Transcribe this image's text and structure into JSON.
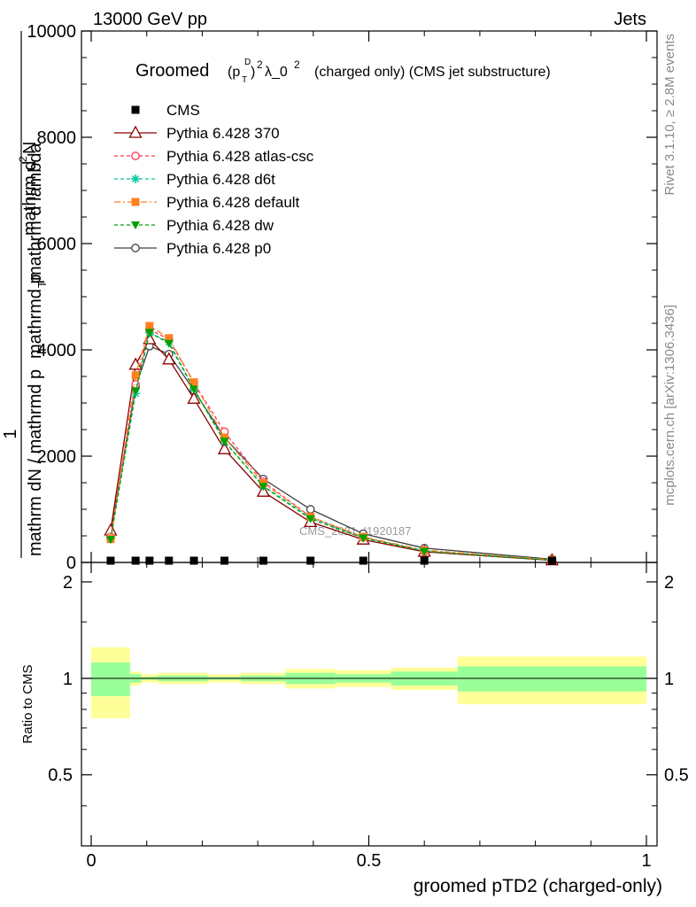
{
  "header": {
    "left": "13000 GeV pp",
    "right": "Jets"
  },
  "title": {
    "main": "Groomed",
    "p": "(p",
    "sub_T": "T",
    "sup_D": "D",
    "close": ")",
    "sup_2": "2",
    "lambda": "λ_0",
    "sup_2b": "2",
    "rest": "(charged only) (CMS jet substructure)"
  },
  "side_labels": {
    "rivet": "Rivet 3.1.10, ≥ 2.8M events",
    "mcplots": "mcplots.cern.ch [arXiv:1306.3436]"
  },
  "watermark": "CMS_2021_I1920187",
  "ylabel_main": {
    "one": "1",
    "denom": "mathrm dN / mathrmd p",
    "denom_sub": "T",
    "num": "mathrm d",
    "num_sup": "2",
    "num_rest": "N",
    "den2": "mathrmd p",
    "den2_sub": "T",
    "den2_rest": " mathrm d lambda"
  },
  "ylabel_ratio": "Ratio to CMS",
  "xlabel": "groomed pTD2 (charged-only)",
  "main_ticks": {
    "y": [
      {
        "v": 0,
        "label": "0"
      },
      {
        "v": 2000,
        "label": "2000"
      },
      {
        "v": 4000,
        "label": "4000"
      },
      {
        "v": 6000,
        "label": "6000"
      },
      {
        "v": 8000,
        "label": "8000"
      },
      {
        "v": 10000,
        "label": "10000"
      }
    ]
  },
  "ratio_ticks": {
    "y": [
      {
        "v": 0.5,
        "label": "0.5"
      },
      {
        "v": 1,
        "label": "1"
      },
      {
        "v": 2,
        "label": "2"
      }
    ]
  },
  "x_ticks": [
    {
      "v": 0,
      "label": "0"
    },
    {
      "v": 0.5,
      "label": "0.5"
    },
    {
      "v": 1,
      "label": "1"
    }
  ],
  "legend": [
    {
      "label": "CMS",
      "color": "#000000",
      "marker": "square-filled",
      "dash": ""
    },
    {
      "label": "Pythia 6.428 370",
      "color": "#8b0000",
      "marker": "triangle-open",
      "dash": ""
    },
    {
      "label": "Pythia 6.428 atlas-csc",
      "color": "#ff3355",
      "marker": "circle-open",
      "dash": "4,3"
    },
    {
      "label": "Pythia 6.428 d6t",
      "color": "#00c8a0",
      "marker": "star",
      "dash": "4,3"
    },
    {
      "label": "Pythia 6.428 default",
      "color": "#ff8020",
      "marker": "square-filled",
      "dash": "7,3,2,3"
    },
    {
      "label": "Pythia 6.428 dw",
      "color": "#00a000",
      "marker": "triangle-down-filled",
      "dash": "4,3"
    },
    {
      "label": "Pythia 6.428 p0",
      "color": "#404040",
      "marker": "circle-open",
      "dash": ""
    }
  ],
  "chart_data": {
    "type": "line",
    "xlabel": "groomed pTD2 (charged-only)",
    "xlim": [
      -0.02,
      1.02
    ],
    "ylim": [
      0,
      10000
    ],
    "ratio_ylim": [
      0.3,
      2.3
    ],
    "ratio_log": true,
    "x": [
      0.035,
      0.08,
      0.105,
      0.14,
      0.185,
      0.24,
      0.31,
      0.395,
      0.49,
      0.6,
      0.83
    ],
    "bin_edges": [
      0.0,
      0.07,
      0.09,
      0.12,
      0.16,
      0.21,
      0.27,
      0.35,
      0.44,
      0.54,
      0.66,
      1.0
    ],
    "series": [
      {
        "name": "CMS",
        "values": [
          0,
          0,
          0,
          0,
          0,
          0,
          0,
          0,
          0,
          0,
          0
        ]
      },
      {
        "name": "Pythia 6.428 370",
        "values": [
          600,
          3720,
          4200,
          3820,
          3080,
          2130,
          1330,
          760,
          430,
          200,
          40
        ]
      },
      {
        "name": "Pythia 6.428 atlas-csc",
        "values": [
          480,
          3350,
          4380,
          4200,
          3380,
          2460,
          1520,
          860,
          470,
          210,
          40
        ]
      },
      {
        "name": "Pythia 6.428 d6t",
        "values": [
          450,
          3180,
          4320,
          4150,
          3270,
          2270,
          1440,
          840,
          470,
          220,
          50
        ]
      },
      {
        "name": "Pythia 6.428 default",
        "values": [
          440,
          3520,
          4450,
          4220,
          3390,
          2350,
          1490,
          860,
          480,
          230,
          50
        ]
      },
      {
        "name": "Pythia 6.428 dw",
        "values": [
          430,
          3230,
          4330,
          4120,
          3260,
          2280,
          1430,
          820,
          460,
          210,
          40
        ]
      },
      {
        "name": "Pythia 6.428 p0",
        "values": [
          540,
          3300,
          4070,
          3920,
          3240,
          2350,
          1570,
          1000,
          540,
          270,
          60
        ]
      }
    ],
    "ratio_bands": {
      "inner_lo": [
        0.88,
        0.97,
        0.99,
        0.98,
        0.98,
        0.99,
        0.98,
        0.96,
        0.97,
        0.95,
        0.91
      ],
      "inner_hi": [
        1.12,
        1.03,
        1.01,
        1.02,
        1.02,
        1.01,
        1.02,
        1.04,
        1.03,
        1.05,
        1.09
      ],
      "outer_lo": [
        0.75,
        0.95,
        0.97,
        0.96,
        0.96,
        0.97,
        0.96,
        0.93,
        0.94,
        0.92,
        0.83
      ],
      "outer_hi": [
        1.25,
        1.05,
        1.03,
        1.04,
        1.04,
        1.03,
        1.04,
        1.07,
        1.06,
        1.08,
        1.17
      ],
      "inner_color": "#99ff99",
      "outer_color": "#ffff99"
    }
  }
}
